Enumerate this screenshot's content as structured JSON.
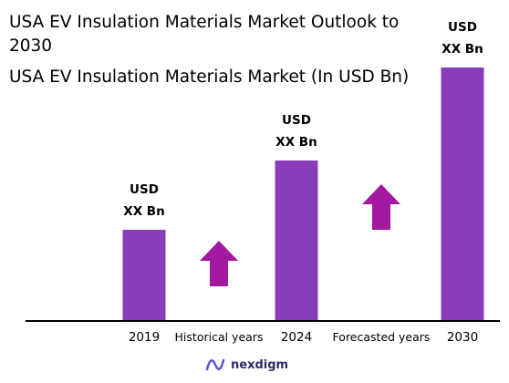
{
  "title": "USA EV Insulation Materials Market Outlook to 2030",
  "subtitle": "USA EV Insulation Materials Market (In USD Bn)",
  "brand": {
    "name": "nexdigm",
    "logo_icon": "nexdigm-logo-icon"
  },
  "colors": {
    "bar": "#8a3dbb",
    "arrow": "#a31aa0",
    "axis": "#000000",
    "brand": "#2c2c6c"
  },
  "chart_data": {
    "type": "bar",
    "title": "USA EV Insulation Materials Market (In USD Bn)",
    "categories": [
      "2019",
      "2024",
      "2030"
    ],
    "values": [
      1.0,
      1.76,
      2.78
    ],
    "value_labels": [
      [
        "USD",
        "XX Bn"
      ],
      [
        "USD",
        "XX Bn"
      ],
      [
        "USD",
        "XX Bn"
      ]
    ],
    "annotations": [
      {
        "text": "Historical years",
        "between": [
          "2019",
          "2024"
        ],
        "arrow": "up"
      },
      {
        "text": "Forecasted years",
        "between": [
          "2024",
          "2030"
        ],
        "arrow": "up"
      }
    ],
    "xlabel": "",
    "ylabel": "",
    "ylim": [
      0,
      2.78
    ],
    "grid": false,
    "legend": "none"
  }
}
